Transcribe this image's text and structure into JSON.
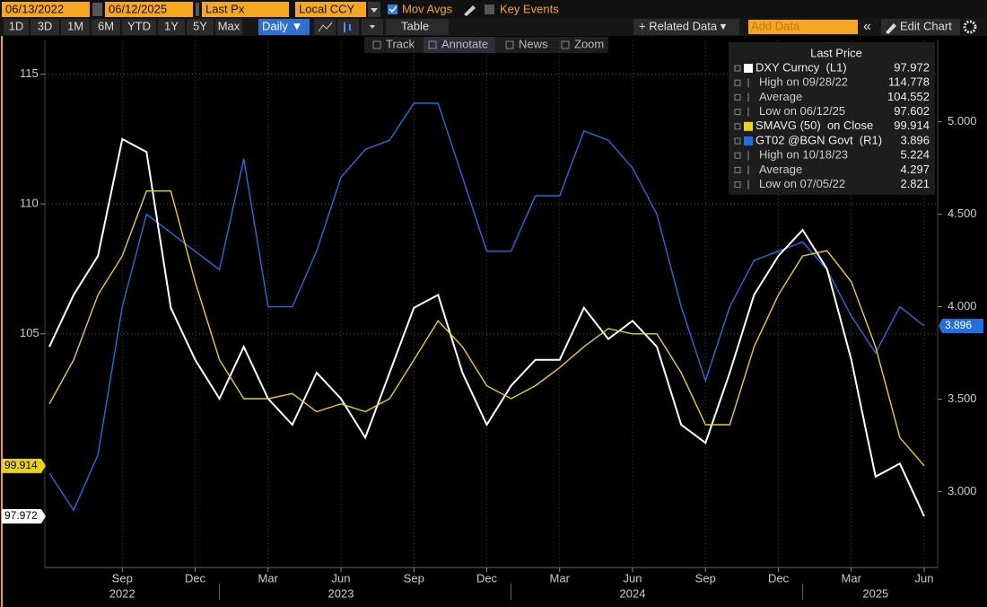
{
  "toolbar": {
    "start_date": "06/13/2022",
    "end_date": "06/12/2025",
    "field": "Last Px",
    "currency": "Local CCY",
    "mov_avgs": "Mov Avgs",
    "key_events": "Key Events",
    "periods": [
      "1D",
      "3D",
      "1M",
      "6M",
      "YTD",
      "1Y",
      "5Y",
      "Max"
    ],
    "frequency": "Daily ▼",
    "table": "Table",
    "related": "+ Related Data ▾",
    "add_data": "Add Data",
    "collapse": "«",
    "edit_chart": "Edit Chart",
    "tools": [
      "Track",
      "Annotate",
      "News",
      "Zoom"
    ]
  },
  "chart_data": {
    "type": "line",
    "grid": true,
    "legend": {
      "title": "Last Price",
      "corner": "top-right"
    },
    "x": [
      "2022-06",
      "2022-07",
      "2022-08",
      "2022-09",
      "2022-10",
      "2022-11",
      "2022-12",
      "2023-01",
      "2023-02",
      "2023-03",
      "2023-04",
      "2023-05",
      "2023-06",
      "2023-07",
      "2023-08",
      "2023-09",
      "2023-10",
      "2023-11",
      "2023-12",
      "2024-01",
      "2024-02",
      "2024-03",
      "2024-04",
      "2024-05",
      "2024-06",
      "2024-07",
      "2024-08",
      "2024-09",
      "2024-10",
      "2024-11",
      "2024-12",
      "2025-01",
      "2025-02",
      "2025-03",
      "2025-04",
      "2025-05",
      "2025-06"
    ],
    "xlim": [
      "2022-06",
      "2025-06"
    ],
    "xticks": [
      {
        "value": "2022-09",
        "label": "Sep"
      },
      {
        "value": "2022-12",
        "label": "Dec"
      },
      {
        "value": "2023-03",
        "label": "Mar"
      },
      {
        "value": "2023-06",
        "label": "Jun"
      },
      {
        "value": "2023-09",
        "label": "Sep"
      },
      {
        "value": "2023-12",
        "label": "Dec"
      },
      {
        "value": "2024-03",
        "label": "Mar"
      },
      {
        "value": "2024-06",
        "label": "Jun"
      },
      {
        "value": "2024-09",
        "label": "Sep"
      },
      {
        "value": "2024-12",
        "label": "Dec"
      },
      {
        "value": "2025-03",
        "label": "Mar"
      },
      {
        "value": "2025-06",
        "label": "Jun"
      }
    ],
    "xtick_groups": [
      {
        "value": "2022-09",
        "label": "2022"
      },
      {
        "value": "2023-06",
        "label": "2023"
      },
      {
        "value": "2024-06",
        "label": "2024"
      },
      {
        "value": "2025-04",
        "label": "2025"
      }
    ],
    "ylim": [
      96,
      116.3
    ],
    "yticks": [
      105,
      110,
      115
    ],
    "y2lim": [
      2.59,
      5.44
    ],
    "y2ticks": [
      {
        "value": 3,
        "label": "3.000"
      },
      {
        "value": 3.5,
        "label": "3.500"
      },
      {
        "value": 4,
        "label": "4.000"
      },
      {
        "value": 4.5,
        "label": "4.500"
      },
      {
        "value": 5,
        "label": "5.000"
      }
    ],
    "series": [
      {
        "name": "DXY Curncy  (L1)",
        "color": "#ffffff",
        "axis": "y",
        "last": 97.972,
        "stats": [
          {
            "label": "High on 09/28/22",
            "value": 114.778
          },
          {
            "label": "Average",
            "value": 104.552
          },
          {
            "label": "Low on 06/12/25",
            "value": 97.602
          }
        ],
        "values": [
          104.5,
          106.5,
          108,
          112.5,
          112,
          106,
          104,
          102.5,
          104.5,
          102.5,
          101.5,
          103.5,
          102.5,
          101,
          103.5,
          106,
          106.5,
          103.5,
          101.5,
          103,
          104,
          104,
          106,
          104.8,
          105.5,
          104.5,
          101.5,
          100.8,
          103.5,
          106.5,
          108,
          109,
          107.5,
          104,
          99.5,
          100,
          97.972
        ]
      },
      {
        "name": "SMAVG (50)  on Close",
        "color": "#e8d21a",
        "axis": "y",
        "last": 99.914,
        "stats": [],
        "values": [
          102.3,
          104,
          106.5,
          108,
          110.5,
          110.5,
          107,
          104,
          102.5,
          102.5,
          102.7,
          102,
          102.3,
          102,
          102.5,
          104,
          105.5,
          104.5,
          103,
          102.5,
          103,
          103.7,
          104.5,
          105.2,
          105,
          105,
          103.5,
          101.5,
          101.5,
          104.5,
          106.5,
          108,
          108.2,
          107,
          104.5,
          101,
          99.914
        ]
      },
      {
        "name": "GT02 @BGN Govt  (R1)",
        "color": "#1f6fe0",
        "axis": "y2",
        "last": 3.896,
        "stats": [
          {
            "label": "High on 10/18/23",
            "value": 5.224
          },
          {
            "label": "Average",
            "value": 4.297
          },
          {
            "label": "Low on 07/05/22",
            "value": 2.821
          }
        ],
        "values": [
          3.1,
          2.9,
          3.2,
          4.0,
          4.5,
          4.4,
          4.3,
          4.2,
          4.8,
          4.0,
          4.0,
          4.3,
          4.7,
          4.85,
          4.9,
          5.1,
          5.1,
          4.7,
          4.3,
          4.3,
          4.6,
          4.6,
          4.95,
          4.9,
          4.75,
          4.5,
          4.0,
          3.6,
          4.0,
          4.25,
          4.3,
          4.35,
          4.2,
          3.95,
          3.75,
          4.0,
          3.896
        ]
      }
    ]
  }
}
